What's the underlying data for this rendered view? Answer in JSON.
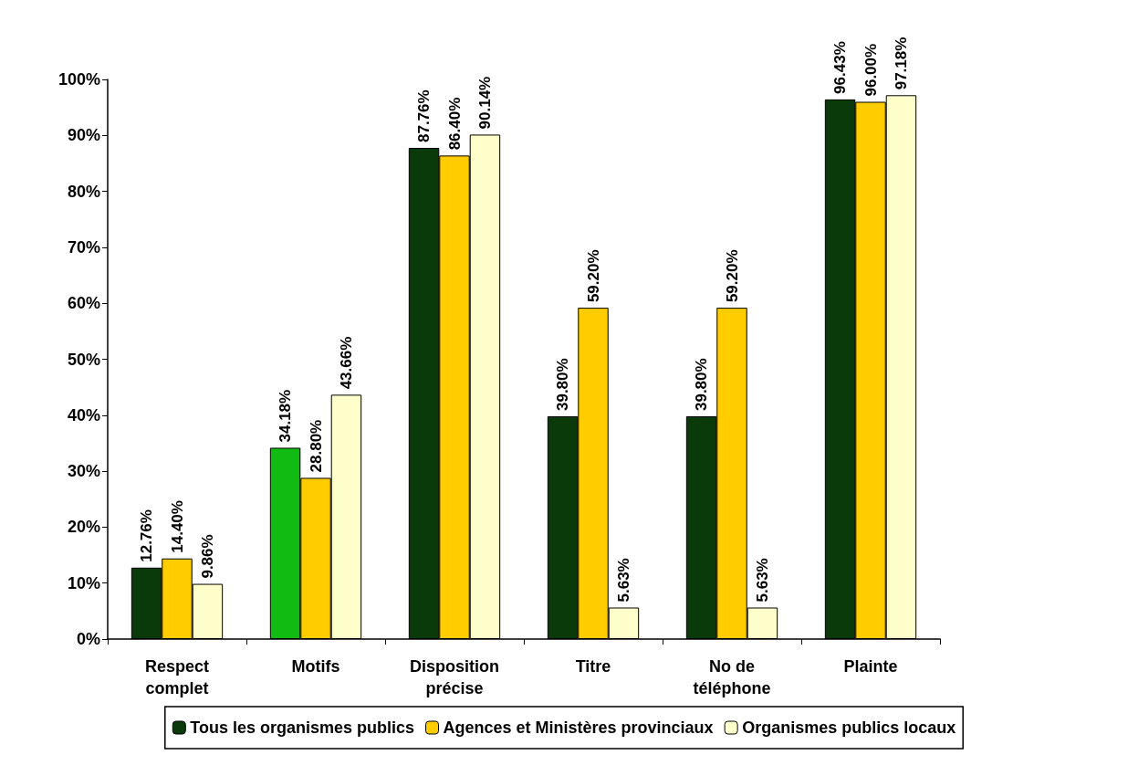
{
  "chart_data": {
    "type": "bar",
    "categories": [
      "Respect complet",
      "Motifs",
      "Disposition précise",
      "Titre",
      "No de téléphone",
      "Plainte"
    ],
    "series": [
      {
        "name": "Tous les organismes publics",
        "color": "#0a3a0a",
        "colors": [
          "#0a3a0a",
          "#11bb11",
          "#0a3a0a",
          "#0a3a0a",
          "#0a3a0a",
          "#0a3a0a"
        ],
        "values": [
          12.76,
          34.18,
          87.76,
          39.8,
          39.8,
          96.43
        ],
        "value_labels": [
          "12.76%",
          "34.18%",
          "87.76%",
          "39.80%",
          "39.80%",
          "96.43%"
        ]
      },
      {
        "name": "Agences et Ministères provinciaux",
        "color": "#ffcc00",
        "values": [
          14.4,
          28.8,
          86.4,
          59.2,
          59.2,
          96.0
        ],
        "value_labels": [
          "14.40%",
          "28.80%",
          "86.40%",
          "59.20%",
          "59.20%",
          "96.00%"
        ]
      },
      {
        "name": "Organismes publics locaux",
        "color": "#ffffcc",
        "values": [
          9.86,
          43.66,
          90.14,
          5.63,
          5.63,
          97.18
        ],
        "value_labels": [
          "9.86%",
          "43.66%",
          "90.14%",
          "5.63%",
          "5.63%",
          "97.18%"
        ]
      }
    ],
    "ylim": [
      0,
      100
    ],
    "yticks": [
      {
        "value": 0,
        "label": "0%"
      },
      {
        "value": 10,
        "label": "10%"
      },
      {
        "value": 20,
        "label": "20%"
      },
      {
        "value": 30,
        "label": "30%"
      },
      {
        "value": 40,
        "label": "40%"
      },
      {
        "value": 50,
        "label": "50%"
      },
      {
        "value": 60,
        "label": "60%"
      },
      {
        "value": 70,
        "label": "70%"
      },
      {
        "value": 80,
        "label": "80%"
      },
      {
        "value": 90,
        "label": "90%"
      },
      {
        "value": 100,
        "label": "100%"
      }
    ],
    "grid": false,
    "legend": "bottom"
  }
}
